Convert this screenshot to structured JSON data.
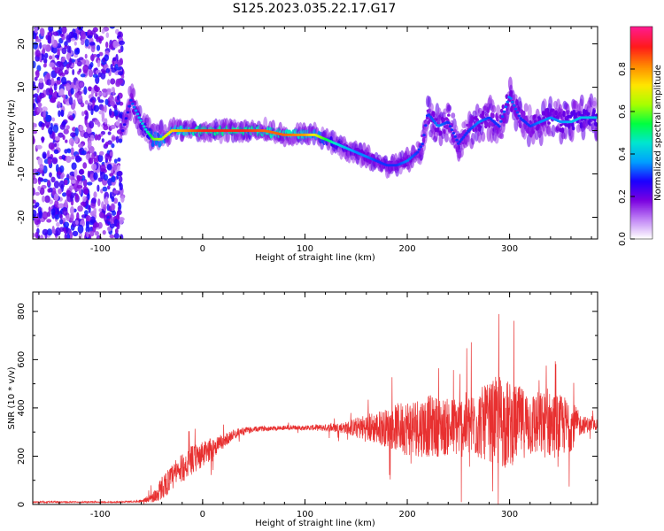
{
  "title": "S125.2023.035.22.17.G17",
  "chart_data": [
    {
      "type": "heatmap",
      "xlabel": "Height of straight line (km)",
      "ylabel": "Frequency (Hz)",
      "xlim": [
        -166,
        386
      ],
      "ylim": [
        -25,
        24
      ],
      "xticks": [
        -100,
        0,
        100,
        200,
        300
      ],
      "yticks": [
        20,
        10,
        0,
        -10,
        -20
      ],
      "grid": false,
      "colorbar": {
        "label": "Normalized spectral amplitude",
        "range": [
          0,
          1
        ],
        "ticks": [
          "0.0",
          "0.2",
          "0.4",
          "0.6",
          "0.8"
        ],
        "colors": [
          "#ffffff",
          "#c084f5",
          "#7a00e0",
          "#1a00ff",
          "#00a0ff",
          "#00e6d0",
          "#00ff40",
          "#a8ff00",
          "#ffe600",
          "#ff8a00",
          "#ff1a1a",
          "#ff1a8a"
        ]
      },
      "noise_region": {
        "x": [
          -166,
          -78
        ],
        "y": [
          -25,
          24
        ],
        "level": 0.25
      },
      "ridge": {
        "x": [
          -78,
          -70,
          -62,
          -55,
          -48,
          -40,
          -30,
          -20,
          -10,
          0,
          20,
          40,
          60,
          80,
          100,
          110,
          120,
          130,
          140,
          150,
          160,
          170,
          180,
          190,
          200,
          210,
          215,
          220,
          230,
          240,
          250,
          260,
          270,
          280,
          290,
          300,
          310,
          320,
          330,
          340,
          350,
          360,
          370,
          380,
          386
        ],
        "freq": [
          0,
          7,
          3,
          0,
          -2,
          -2,
          0,
          0,
          0,
          0,
          0,
          0,
          0,
          -1,
          -1,
          -1,
          -2,
          -3,
          -4,
          -5,
          -6,
          -7,
          -8,
          -8,
          -7,
          -5,
          -3,
          4,
          1,
          2,
          -3,
          0,
          2,
          3,
          1,
          8,
          3,
          1,
          2,
          3,
          2,
          2,
          3,
          3,
          3
        ],
        "amplitude": [
          0.25,
          0.3,
          0.4,
          0.45,
          0.6,
          0.65,
          0.75,
          0.8,
          0.85,
          0.9,
          0.9,
          0.9,
          0.85,
          0.85,
          0.8,
          0.7,
          0.55,
          0.45,
          0.4,
          0.35,
          0.35,
          0.3,
          0.3,
          0.3,
          0.35,
          0.3,
          0.3,
          0.3,
          0.35,
          0.3,
          0.3,
          0.3,
          0.35,
          0.3,
          0.3,
          0.35,
          0.3,
          0.3,
          0.35,
          0.35,
          0.35,
          0.4,
          0.4,
          0.4,
          0.4
        ]
      }
    },
    {
      "type": "line",
      "xlabel": "Height of straight line (km)",
      "ylabel": "SNR (10 * v/v)",
      "xlim": [
        -166,
        386
      ],
      "ylim": [
        0,
        880
      ],
      "xticks": [
        -100,
        0,
        100,
        200,
        300
      ],
      "yticks": [
        0,
        200,
        400,
        600,
        800
      ],
      "grid": false,
      "series": [
        {
          "color": "#e83030",
          "x": [
            -166,
            -120,
            -80,
            -60,
            -52,
            -45,
            -40,
            -30,
            -20,
            -10,
            0,
            10,
            20,
            30,
            40,
            60,
            80,
            100,
            120,
            140,
            160,
            180,
            200,
            220,
            240,
            260,
            280,
            290,
            300,
            310,
            320,
            330,
            340,
            350,
            360,
            370,
            386
          ],
          "values": [
            10,
            10,
            10,
            14,
            25,
            40,
            70,
            110,
            150,
            185,
            205,
            235,
            260,
            290,
            305,
            315,
            318,
            318,
            318,
            318,
            318,
            318,
            320,
            325,
            320,
            330,
            340,
            345,
            330,
            340,
            335,
            330,
            330,
            325,
            330,
            330,
            330
          ],
          "spread": [
            3,
            3,
            3,
            5,
            15,
            35,
            50,
            55,
            60,
            60,
            55,
            45,
            30,
            20,
            15,
            10,
            10,
            10,
            15,
            25,
            60,
            80,
            120,
            130,
            120,
            140,
            160,
            200,
            180,
            150,
            140,
            140,
            140,
            130,
            110,
            40,
            20
          ]
        }
      ]
    }
  ]
}
